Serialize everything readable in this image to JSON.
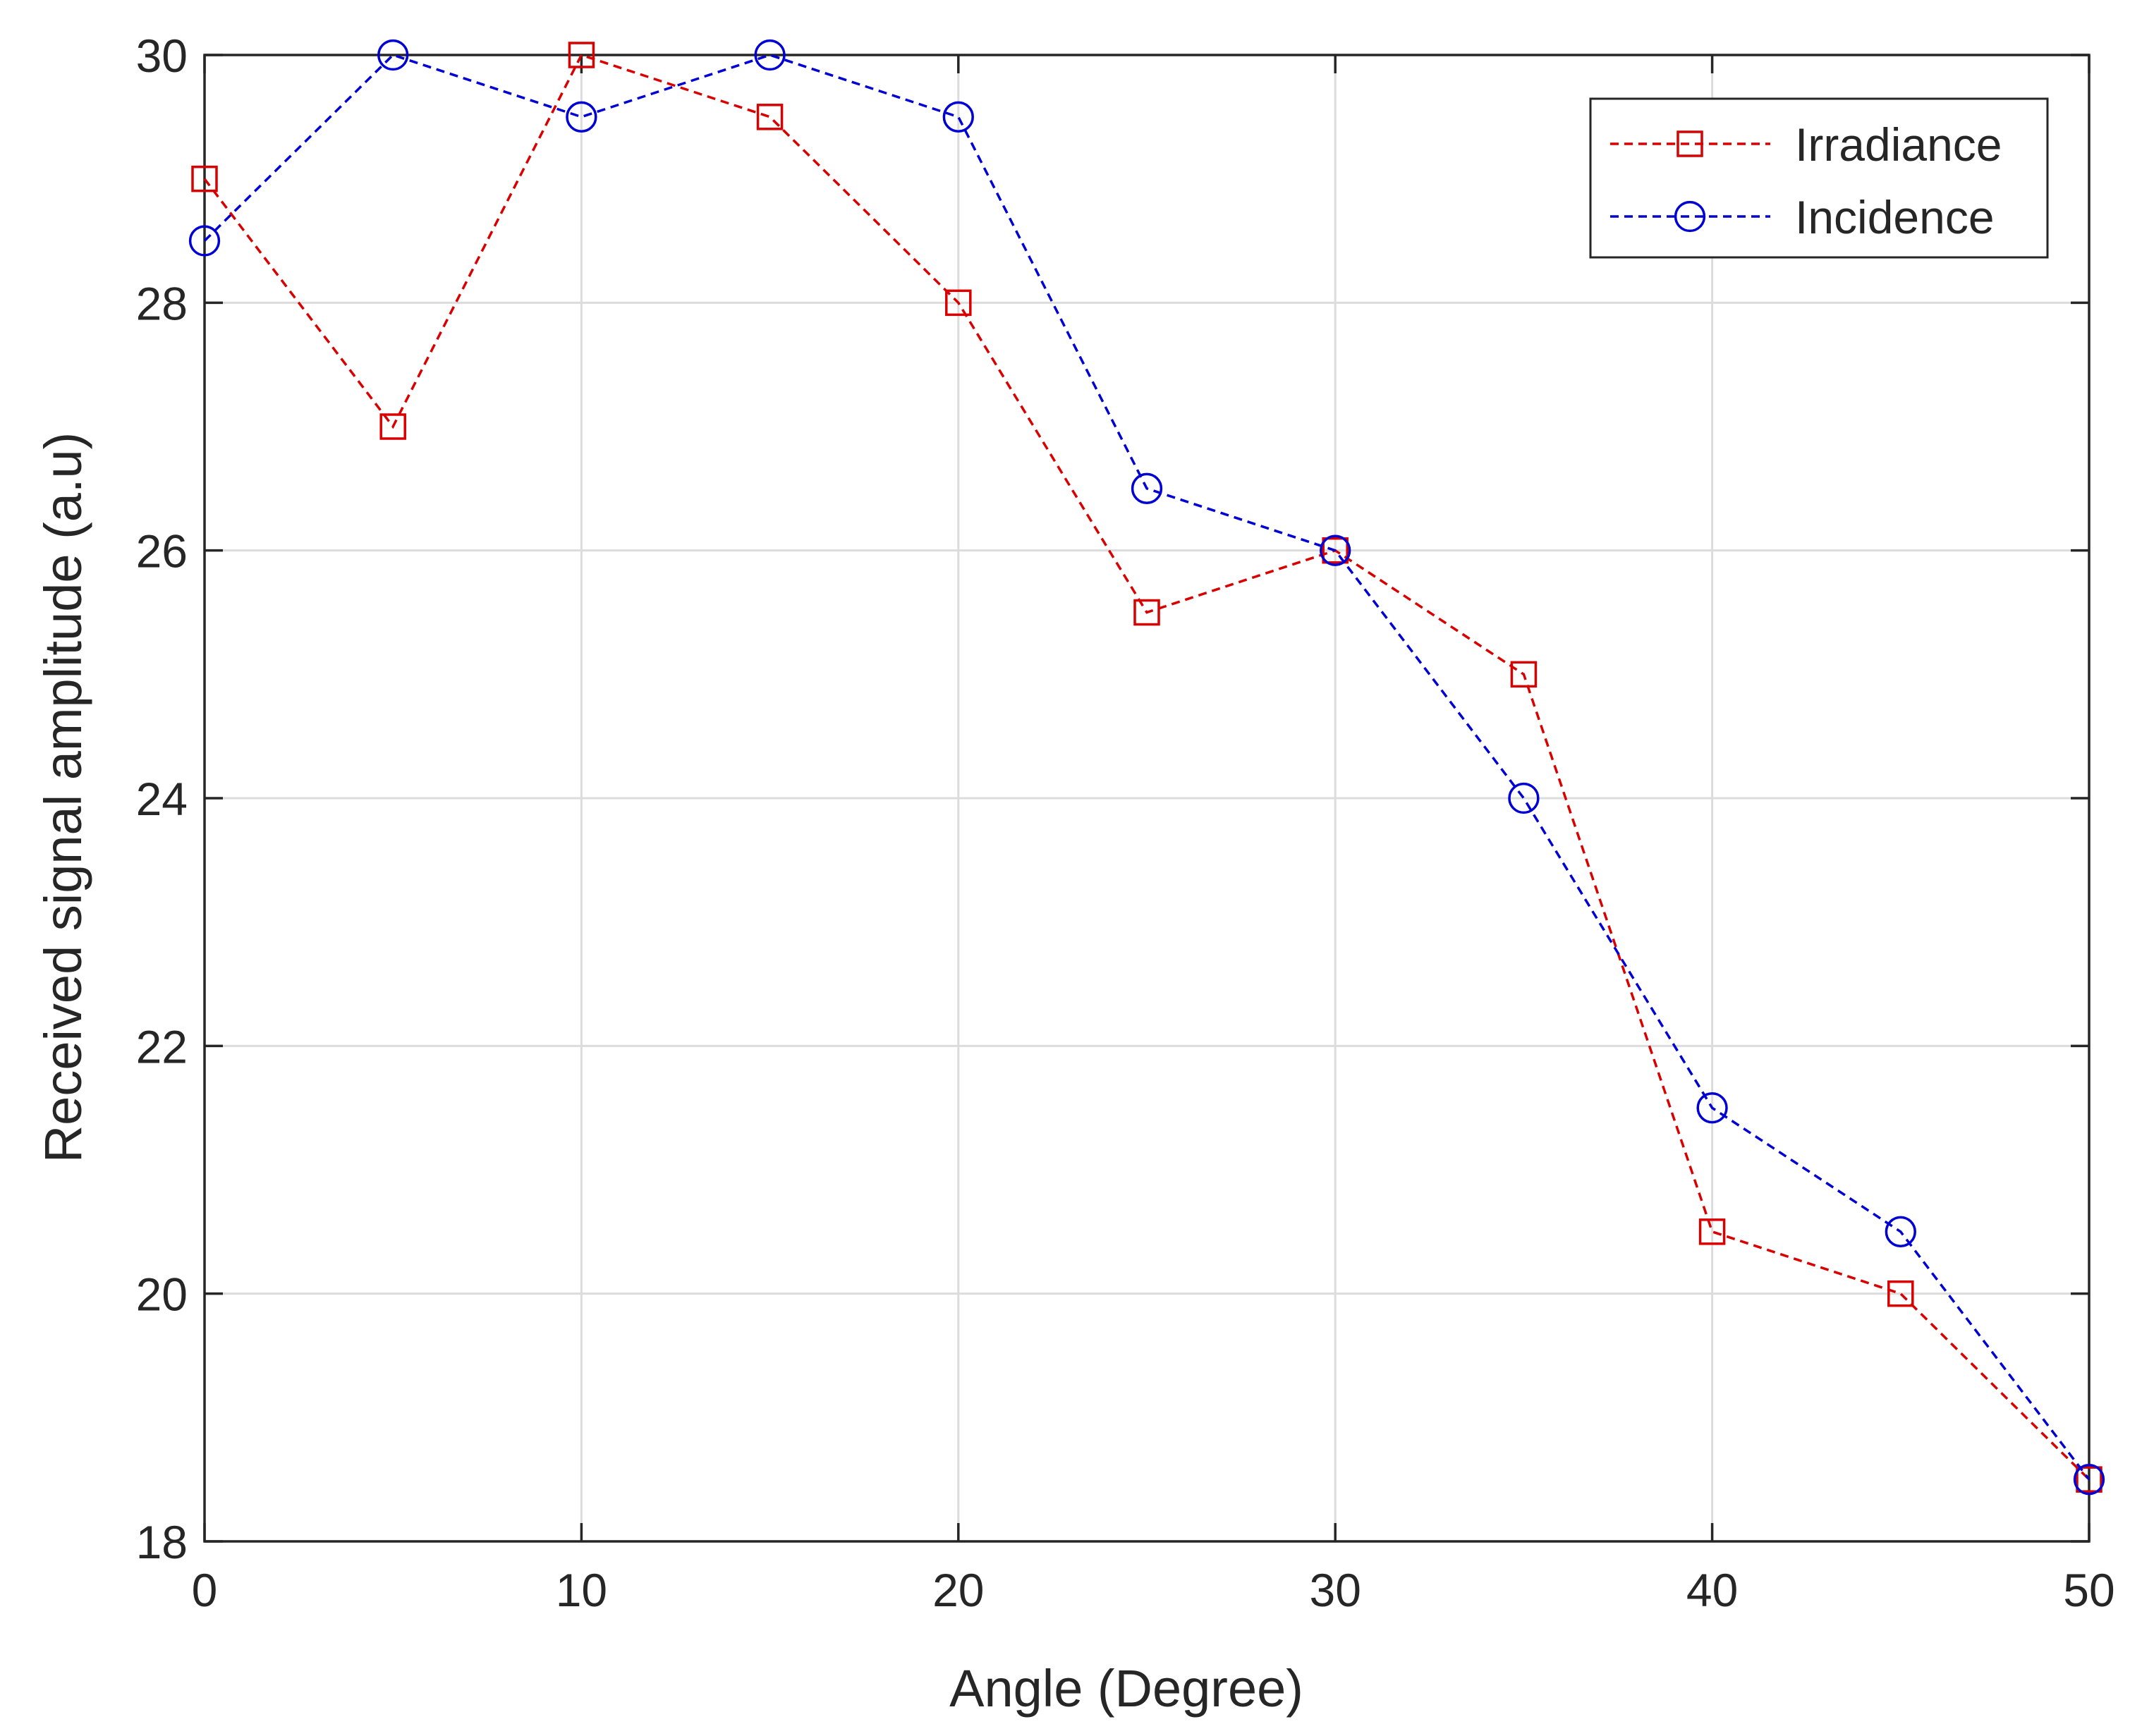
{
  "chart_data": {
    "type": "line",
    "title": "",
    "xlabel": "Angle (Degree)",
    "ylabel": "Received signal amplitude (a.u)",
    "xlim": [
      0,
      50
    ],
    "ylim": [
      18,
      30
    ],
    "xticks": [
      0,
      10,
      20,
      30,
      40,
      50
    ],
    "yticks": [
      18,
      20,
      22,
      24,
      26,
      28,
      30
    ],
    "grid": true,
    "legend_position": "top-right",
    "x": [
      0,
      5,
      10,
      15,
      20,
      25,
      30,
      35,
      40,
      45,
      50
    ],
    "series": [
      {
        "name": "Irradiance",
        "color": "#d90000",
        "marker": "square",
        "line_style": "dashed",
        "values": [
          29,
          27,
          30,
          29.5,
          28,
          25.5,
          26,
          25,
          20.5,
          20,
          18.5
        ]
      },
      {
        "name": "Incidence",
        "color": "#0000d4",
        "marker": "circle",
        "line_style": "dashed",
        "values": [
          28.5,
          30,
          29.5,
          30,
          29.5,
          26.5,
          26,
          24,
          21.5,
          20.5,
          18.5
        ]
      }
    ]
  }
}
